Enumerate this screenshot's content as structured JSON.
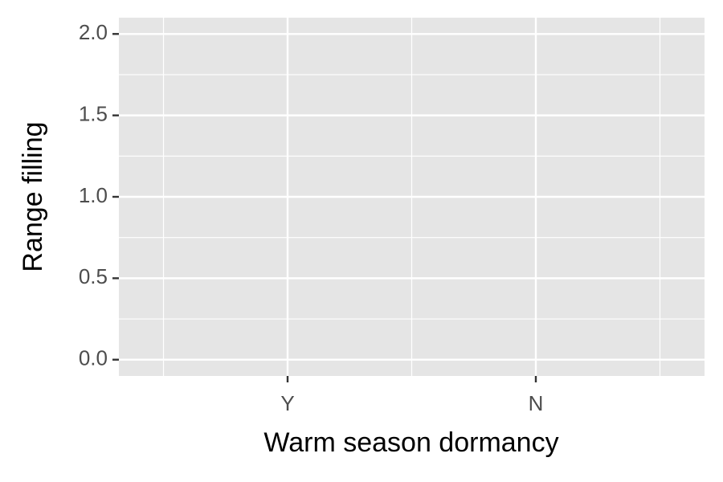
{
  "chart_data": {
    "type": "bar",
    "xlabel": "Warm season dormancy",
    "ylabel": "Range filling",
    "categories": [
      "Y",
      "N"
    ],
    "ylim": [
      -0.1,
      2.1
    ],
    "yticks": [
      {
        "value": 0,
        "label": "0.0"
      },
      0.5,
      {
        "value": 1,
        "label": "1.0"
      },
      1.5,
      {
        "value": 2,
        "label": "2.0"
      }
    ],
    "grid": true
  }
}
